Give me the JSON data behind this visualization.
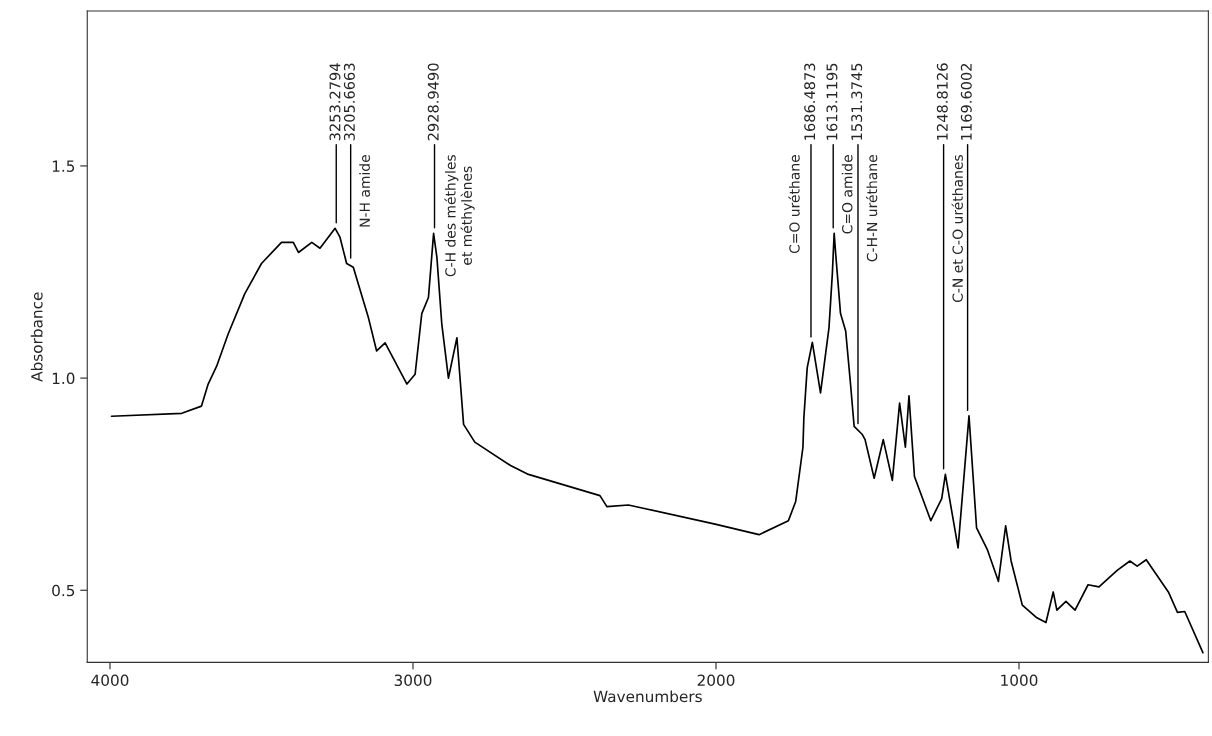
{
  "chart_data": {
    "type": "line",
    "xlabel": "Wavenumbers",
    "ylabel": "Absorbance",
    "xlim": [
      4075,
      375
    ],
    "ylim": [
      0.33,
      1.865
    ],
    "xticks": [
      4000,
      3000,
      2000,
      1000
    ],
    "yticks": [
      0.5,
      {
        "value": 1.0,
        "label": "1.0"
      },
      1.5
    ],
    "grid": false,
    "series": [
      {
        "color": "#000000",
        "x": [
          3995,
          3763,
          3698,
          3676,
          3648,
          3610,
          3555,
          3500,
          3434,
          3395,
          3378,
          3334,
          3307,
          3257,
          3241,
          3219,
          3197,
          3147,
          3120,
          3092,
          3020,
          2993,
          2971,
          2949,
          2932,
          2921,
          2905,
          2883,
          2855,
          2833,
          2796,
          2678,
          2619,
          2383,
          2360,
          2289,
          2244,
          2003,
          1858,
          1761,
          1737,
          1713,
          1710,
          1699,
          1682,
          1655,
          1627,
          1616,
          1610,
          1605,
          1589,
          1572,
          1556,
          1544,
          1517,
          1508,
          1478,
          1448,
          1418,
          1394,
          1375,
          1363,
          1345,
          1291,
          1255,
          1243,
          1201,
          1165,
          1140,
          1104,
          1068,
          1044,
          1026,
          989,
          941,
          911,
          887,
          875,
          845,
          815,
          772,
          736,
          676,
          634,
          610,
          580,
          507,
          477,
          453,
          393
        ],
        "values": [
          0.91,
          0.917,
          0.934,
          0.986,
          1.028,
          1.104,
          1.199,
          1.27,
          1.32,
          1.32,
          1.296,
          1.32,
          1.306,
          1.353,
          1.332,
          1.27,
          1.261,
          1.142,
          1.064,
          1.083,
          0.986,
          1.009,
          1.152,
          1.19,
          1.341,
          1.284,
          1.128,
          1.0,
          1.095,
          0.891,
          0.849,
          0.794,
          0.773,
          0.723,
          0.697,
          0.701,
          0.694,
          0.656,
          0.631,
          0.664,
          0.709,
          0.837,
          0.906,
          1.024,
          1.084,
          0.965,
          1.119,
          1.246,
          1.341,
          1.293,
          1.152,
          1.111,
          0.986,
          0.886,
          0.867,
          0.855,
          0.764,
          0.855,
          0.759,
          0.941,
          0.837,
          0.958,
          0.768,
          0.664,
          0.716,
          0.773,
          0.6,
          0.911,
          0.647,
          0.595,
          0.521,
          0.652,
          0.569,
          0.465,
          0.435,
          0.424,
          0.496,
          0.453,
          0.474,
          0.453,
          0.513,
          0.508,
          0.547,
          0.569,
          0.557,
          0.572,
          0.496,
          0.448,
          0.45,
          0.353
        ]
      }
    ],
    "annotations": [
      {
        "text": "3253.2794",
        "x": 3253.2794,
        "y": 1.353
      },
      {
        "text": "3205.6663",
        "x": 3205.6663,
        "y": 1.27
      },
      "N-H amide",
      {
        "text": "2928.9490",
        "x": 2928.949,
        "y": 1.341
      },
      "C-H des méthyles\net méthylènes",
      "C=O uréthane",
      {
        "text": "1686.4873",
        "x": 1686.4873,
        "y": 1.084
      },
      {
        "text": "1613.1195",
        "x": 1613.1195,
        "y": 1.341
      },
      "C=O amide",
      {
        "text": "1531.3745",
        "x": 1531.3745,
        "y": 0.88
      },
      "C-H-N uréthane",
      {
        "text": "1248.8126",
        "x": 1248.8126,
        "y": 0.773
      },
      "C-N et C-O uréthanes",
      {
        "text": "1169.6002",
        "x": 1169.6002,
        "y": 0.911
      }
    ]
  }
}
